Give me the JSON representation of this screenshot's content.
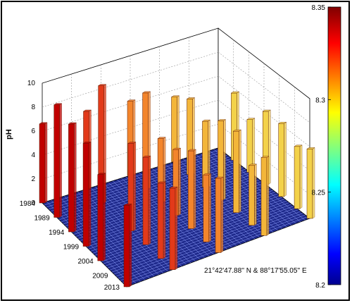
{
  "chart_data": {
    "type": "bar3d",
    "ylabel": "pH",
    "zticks": [
      "0",
      "2",
      "4",
      "6",
      "8",
      "10"
    ],
    "zlim": [
      0,
      10
    ],
    "year_ticks": [
      "1984",
      "1989",
      "1994",
      "1999",
      "2004",
      "2009",
      "2013"
    ],
    "annotation": "21°42'47.88'' N & 88°17'55.05'' E",
    "colorbar": {
      "ticks": [
        "8.35",
        "8.3",
        "8.25",
        "8.2"
      ],
      "range": [
        8.2,
        8.35
      ],
      "colormap": "jet"
    },
    "bars": [
      {
        "year": 1984,
        "row": 0,
        "ph": 6.6
      },
      {
        "year": 1984,
        "row": 1,
        "ph": 6.5
      },
      {
        "year": 1984,
        "row": 2,
        "ph": 6.2
      },
      {
        "year": 1984,
        "row": 3,
        "ph": 5.4
      },
      {
        "year": 1989,
        "row": 0,
        "ph": 9.4
      },
      {
        "year": 1989,
        "row": 1,
        "ph": 9.8
      },
      {
        "year": 1989,
        "row": 2,
        "ph": 8.0
      },
      {
        "year": 1989,
        "row": 3,
        "ph": 6.3
      },
      {
        "year": 1989,
        "row": 4,
        "ph": 5.6
      },
      {
        "year": 1994,
        "row": 0,
        "ph": 9.0
      },
      {
        "year": 1994,
        "row": 2,
        "ph": 5.3
      },
      {
        "year": 1994,
        "row": 3,
        "ph": 5.5
      },
      {
        "year": 1994,
        "row": 4,
        "ph": 4.4
      },
      {
        "year": 1999,
        "row": 0,
        "ph": 8.6
      },
      {
        "year": 1999,
        "row": 1,
        "ph": 7.3
      },
      {
        "year": 1999,
        "row": 2,
        "ph": 5.5
      },
      {
        "year": 1999,
        "row": 3,
        "ph": 6.6
      },
      {
        "year": 1999,
        "row": 4,
        "ph": 6.1
      },
      {
        "year": 2004,
        "row": 0,
        "ph": 7.2
      },
      {
        "year": 2004,
        "row": 1,
        "ph": 7.3
      },
      {
        "year": 2004,
        "row": 2,
        "ph": 6.5
      },
      {
        "year": 2004,
        "row": 3,
        "ph": 6.8
      },
      {
        "year": 2004,
        "row": 4,
        "ph": 6.1
      },
      {
        "year": 2009,
        "row": 1,
        "ph": 6.3
      },
      {
        "year": 2009,
        "row": 2,
        "ph": 5.6
      },
      {
        "year": 2009,
        "row": 3,
        "ph": 5.0
      },
      {
        "year": 2009,
        "row": 4,
        "ph": 5.2
      },
      {
        "year": 2013,
        "row": 0,
        "ph": 6.8
      },
      {
        "year": 2013,
        "row": 1,
        "ph": 6.8
      },
      {
        "year": 2013,
        "row": 2,
        "ph": 6.2
      },
      {
        "year": 2013,
        "row": 3,
        "ph": 6.5
      },
      {
        "year": 2013,
        "row": 4,
        "ph": 5.8
      }
    ],
    "bar_colors": [
      "#c00000",
      "#e23a1a",
      "#f3852c",
      "#f3b63a",
      "#f3d24a"
    ]
  }
}
